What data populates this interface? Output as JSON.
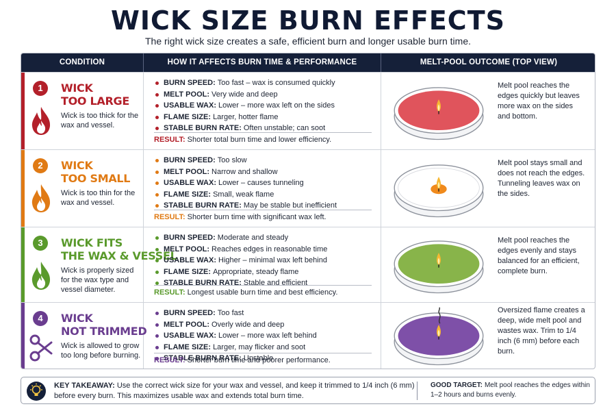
{
  "title": "WICK SIZE BURN EFFECTS",
  "subtitle": "The right wick size creates a safe, efficient burn and longer usable burn time.",
  "headers": {
    "condition": "CONDITION",
    "effects": "HOW IT AFFECTS BURN TIME & PERFORMANCE",
    "outcome": "MELT-POOL OUTCOME (TOP VIEW)"
  },
  "rows": [
    {
      "number": "1",
      "title_line1": "WICK",
      "title_line2": "TOO LARGE",
      "description": "Wick is too thick for the wax and vessel.",
      "accent_color": "#b3202a",
      "pool_color": "#e0545c",
      "icon": "flame-icon",
      "bullets": [
        {
          "label": "BURN SPEED:",
          "text": "Too fast – wax is consumed quickly"
        },
        {
          "label": "MELT POOL:",
          "text": "Very wide and deep"
        },
        {
          "label": "USABLE WAX:",
          "text": "Lower – more wax left on the sides"
        },
        {
          "label": "FLAME SIZE:",
          "text": "Larger, hotter flame"
        },
        {
          "label": "STABLE BURN RATE:",
          "text": "Often unstable; can soot"
        }
      ],
      "result_label": "RESULT:",
      "result_text": "Shorter total burn time and lower efficiency.",
      "outcome": "Melt pool reaches the edges quickly but leaves more wax on the sides and bottom."
    },
    {
      "number": "2",
      "title_line1": "WICK",
      "title_line2": "TOO SMALL",
      "description": "Wick is too thin for the wax and vessel.",
      "accent_color": "#e07a14",
      "pool_color": "#f08a1c",
      "icon": "flame-icon",
      "bullets": [
        {
          "label": "BURN SPEED:",
          "text": "Too slow"
        },
        {
          "label": "MELT POOL:",
          "text": "Narrow and shallow"
        },
        {
          "label": "USABLE WAX:",
          "text": "Lower – causes tunneling"
        },
        {
          "label": "FLAME SIZE:",
          "text": "Small, weak flame"
        },
        {
          "label": "STABLE BURN RATE:",
          "text": "May be stable but inefficient"
        }
      ],
      "result_label": "RESULT:",
      "result_text": "Shorter burn time with significant wax left.",
      "outcome": "Melt pool stays small and does not reach the edges. Tunneling leaves wax on the sides."
    },
    {
      "number": "3",
      "title_line1": "WICK FITS",
      "title_line2": "THE WAX & VESSEL",
      "description": "Wick is properly sized for the wax type and vessel diameter.",
      "accent_color": "#5a9a2c",
      "pool_color": "#88b44a",
      "icon": "flame-icon",
      "bullets": [
        {
          "label": "BURN SPEED:",
          "text": "Moderate and steady"
        },
        {
          "label": "MELT POOL:",
          "text": "Reaches edges in reasonable time"
        },
        {
          "label": "USABLE WAX:",
          "text": "Higher – minimal wax left behind"
        },
        {
          "label": "FLAME SIZE:",
          "text": "Appropriate, steady flame"
        },
        {
          "label": "STABLE BURN RATE:",
          "text": "Stable and efficient"
        }
      ],
      "result_label": "RESULT:",
      "result_text": "Longest usable burn time and best efficiency.",
      "outcome": "Melt pool reaches the edges evenly and stays balanced for an efficient, complete burn."
    },
    {
      "number": "4",
      "title_line1": "WICK",
      "title_line2": "NOT TRIMMED",
      "description": "Wick is allowed to grow too long before burning.",
      "accent_color": "#6a3d8f",
      "pool_color": "#7e50a8",
      "icon": "scissors-icon",
      "bullets": [
        {
          "label": "BURN SPEED:",
          "text": "Too fast"
        },
        {
          "label": "MELT POOL:",
          "text": "Overly wide and deep"
        },
        {
          "label": "USABLE WAX:",
          "text": "Lower – more wax left behind"
        },
        {
          "label": "FLAME SIZE:",
          "text": "Larger, may flicker and soot"
        },
        {
          "label": "STABLE BURN RATE:",
          "text": "Unstable"
        }
      ],
      "result_label": "RESULT:",
      "result_text": "Shorter burn time and poorer performance.",
      "outcome": "Oversized flame creates a deep, wide melt pool and wastes wax. Trim to 1/4 inch (6 mm) before each burn."
    }
  ],
  "footer": {
    "key_label": "KEY TAKEAWAY:",
    "key_text": "Use the correct wick size for your wax and vessel, and keep it trimmed to 1/4 inch (6 mm) before every burn. This maximizes usable wax and extends total burn time.",
    "target_label": "GOOD TARGET:",
    "target_text": "Melt pool reaches the edges within 1–2 hours and burns evenly.",
    "icon": "lightbulb-icon"
  }
}
